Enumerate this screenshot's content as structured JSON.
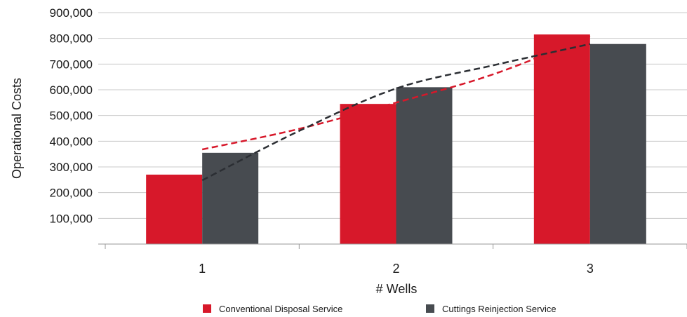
{
  "chart_data": {
    "type": "bar",
    "categories": [
      "1",
      "2",
      "3"
    ],
    "series": [
      {
        "name": "Conventional Disposal Service",
        "values": [
          270000,
          545000,
          815000
        ],
        "color": "#d7182a"
      },
      {
        "name": "Cuttings Reinjection Service",
        "values": [
          355000,
          610000,
          778000
        ],
        "color": "#474b50"
      }
    ],
    "trendlines": [
      {
        "series": "Conventional Disposal Service",
        "style": "dashed",
        "color": "#d7182a",
        "x": [
          1,
          1.5,
          2,
          2.5,
          3
        ],
        "values": [
          368000,
          448000,
          550000,
          660000,
          808000
        ]
      },
      {
        "series": "Cuttings Reinjection Service",
        "style": "dashed",
        "color": "#2b2e33",
        "x": [
          1,
          1.5,
          2,
          2.5,
          3
        ],
        "values": [
          248000,
          440000,
          605000,
          695000,
          778000
        ]
      }
    ],
    "xlabel": "# Wells",
    "ylabel": "Operational Costs",
    "ylim": [
      0,
      900000
    ],
    "yticks": [
      100000,
      200000,
      300000,
      400000,
      500000,
      600000,
      700000,
      800000,
      900000
    ],
    "ytick_labels": [
      "100,000",
      "200,000",
      "300,000",
      "400,000",
      "500,000",
      "600,000",
      "700,000",
      "800,000",
      "900,000"
    ],
    "grid": true,
    "legend_position": "bottom"
  }
}
